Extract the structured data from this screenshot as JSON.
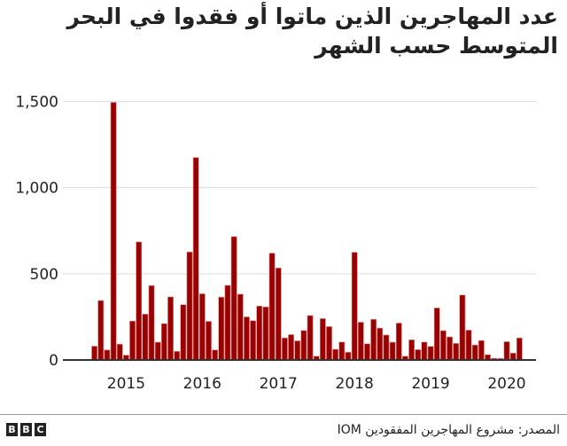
{
  "title": "عدد المهاجرين الذين ماتوا أو فقدوا في البحر المتوسط حسب الشهر",
  "source": "المصدر: مشروع المهاجرين المفقودين IOM",
  "logo": [
    "B",
    "B",
    "C"
  ],
  "colors": {
    "bar": "#990000",
    "bar_edge": "#e88b8b",
    "grid": "#dcdcdc",
    "axis": "#333333",
    "text": "#222222"
  },
  "chart_data": {
    "type": "bar",
    "title": "عدد المهاجرين الذين ماتوا أو فقدوا في البحر المتوسط حسب الشهر",
    "xlabel": "",
    "ylabel": "",
    "ylim": [
      0,
      1500
    ],
    "yticks": [
      0,
      500,
      1000,
      1500
    ],
    "ytick_labels": [
      "0",
      "500",
      "1,000",
      "1,500"
    ],
    "xtick_labels": [
      "2015",
      "2016",
      "2017",
      "2018",
      "2019",
      "2020"
    ],
    "xtick_bar_index": [
      5,
      17,
      29,
      41,
      53,
      65
    ],
    "grid": true,
    "legend": null,
    "categories": [
      "2014-08",
      "2014-09",
      "2014-10",
      "2014-11",
      "2014-12",
      "2015-01",
      "2015-02",
      "2015-03",
      "2015-04",
      "2015-05",
      "2015-06",
      "2015-07",
      "2015-08",
      "2015-09",
      "2015-10",
      "2015-11",
      "2015-12",
      "2016-01",
      "2016-02",
      "2016-03",
      "2016-04",
      "2016-05",
      "2016-06",
      "2016-07",
      "2016-08",
      "2016-09",
      "2016-10",
      "2016-11",
      "2016-12",
      "2017-01",
      "2017-02",
      "2017-03",
      "2017-04",
      "2017-05",
      "2017-06",
      "2017-07",
      "2017-08",
      "2017-09",
      "2017-10",
      "2017-11",
      "2017-12",
      "2018-01",
      "2018-02",
      "2018-03",
      "2018-04",
      "2018-05",
      "2018-06",
      "2018-07",
      "2018-08",
      "2018-09",
      "2018-10",
      "2018-11",
      "2018-12",
      "2019-01",
      "2019-02",
      "2019-03",
      "2019-04",
      "2019-05",
      "2019-06",
      "2019-07",
      "2019-08",
      "2019-09",
      "2019-10",
      "2019-11",
      "2019-12",
      "2020-01",
      "2020-02",
      "2020-03"
    ],
    "values": [
      80,
      345,
      58,
      1495,
      92,
      28,
      226,
      685,
      266,
      432,
      103,
      211,
      366,
      50,
      321,
      627,
      1175,
      384,
      224,
      58,
      365,
      433,
      716,
      382,
      250,
      228,
      313,
      308,
      620,
      534,
      128,
      147,
      111,
      171,
      258,
      22,
      240,
      194,
      62,
      104,
      45,
      625,
      219,
      94,
      236,
      185,
      145,
      103,
      214,
      22,
      117,
      60,
      104,
      79,
      302,
      170,
      134,
      96,
      377,
      173,
      87,
      113,
      31,
      10,
      9,
      106,
      40,
      128
    ]
  }
}
